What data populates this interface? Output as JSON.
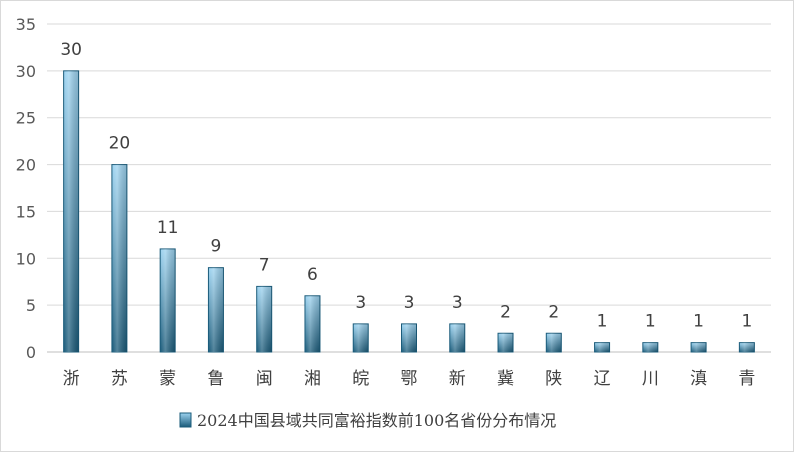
{
  "chart_data": {
    "type": "bar",
    "categories": [
      "浙",
      "苏",
      "蒙",
      "鲁",
      "闽",
      "湘",
      "皖",
      "鄂",
      "新",
      "冀",
      "陕",
      "辽",
      "川",
      "滇",
      "青"
    ],
    "series": [
      {
        "name": "2024中国县域共同富裕指数前100名省份分布情况",
        "values": [
          30,
          20,
          11,
          9,
          7,
          6,
          3,
          3,
          3,
          2,
          2,
          1,
          1,
          1,
          1
        ]
      }
    ],
    "yticks": [
      0,
      5,
      10,
      15,
      20,
      25,
      30,
      35
    ],
    "ylim": [
      0,
      35
    ],
    "grid": true,
    "legend_position": "bottom",
    "bar_color_top": "#9dd3f0",
    "bar_color_bottom": "#1a5b7a"
  }
}
